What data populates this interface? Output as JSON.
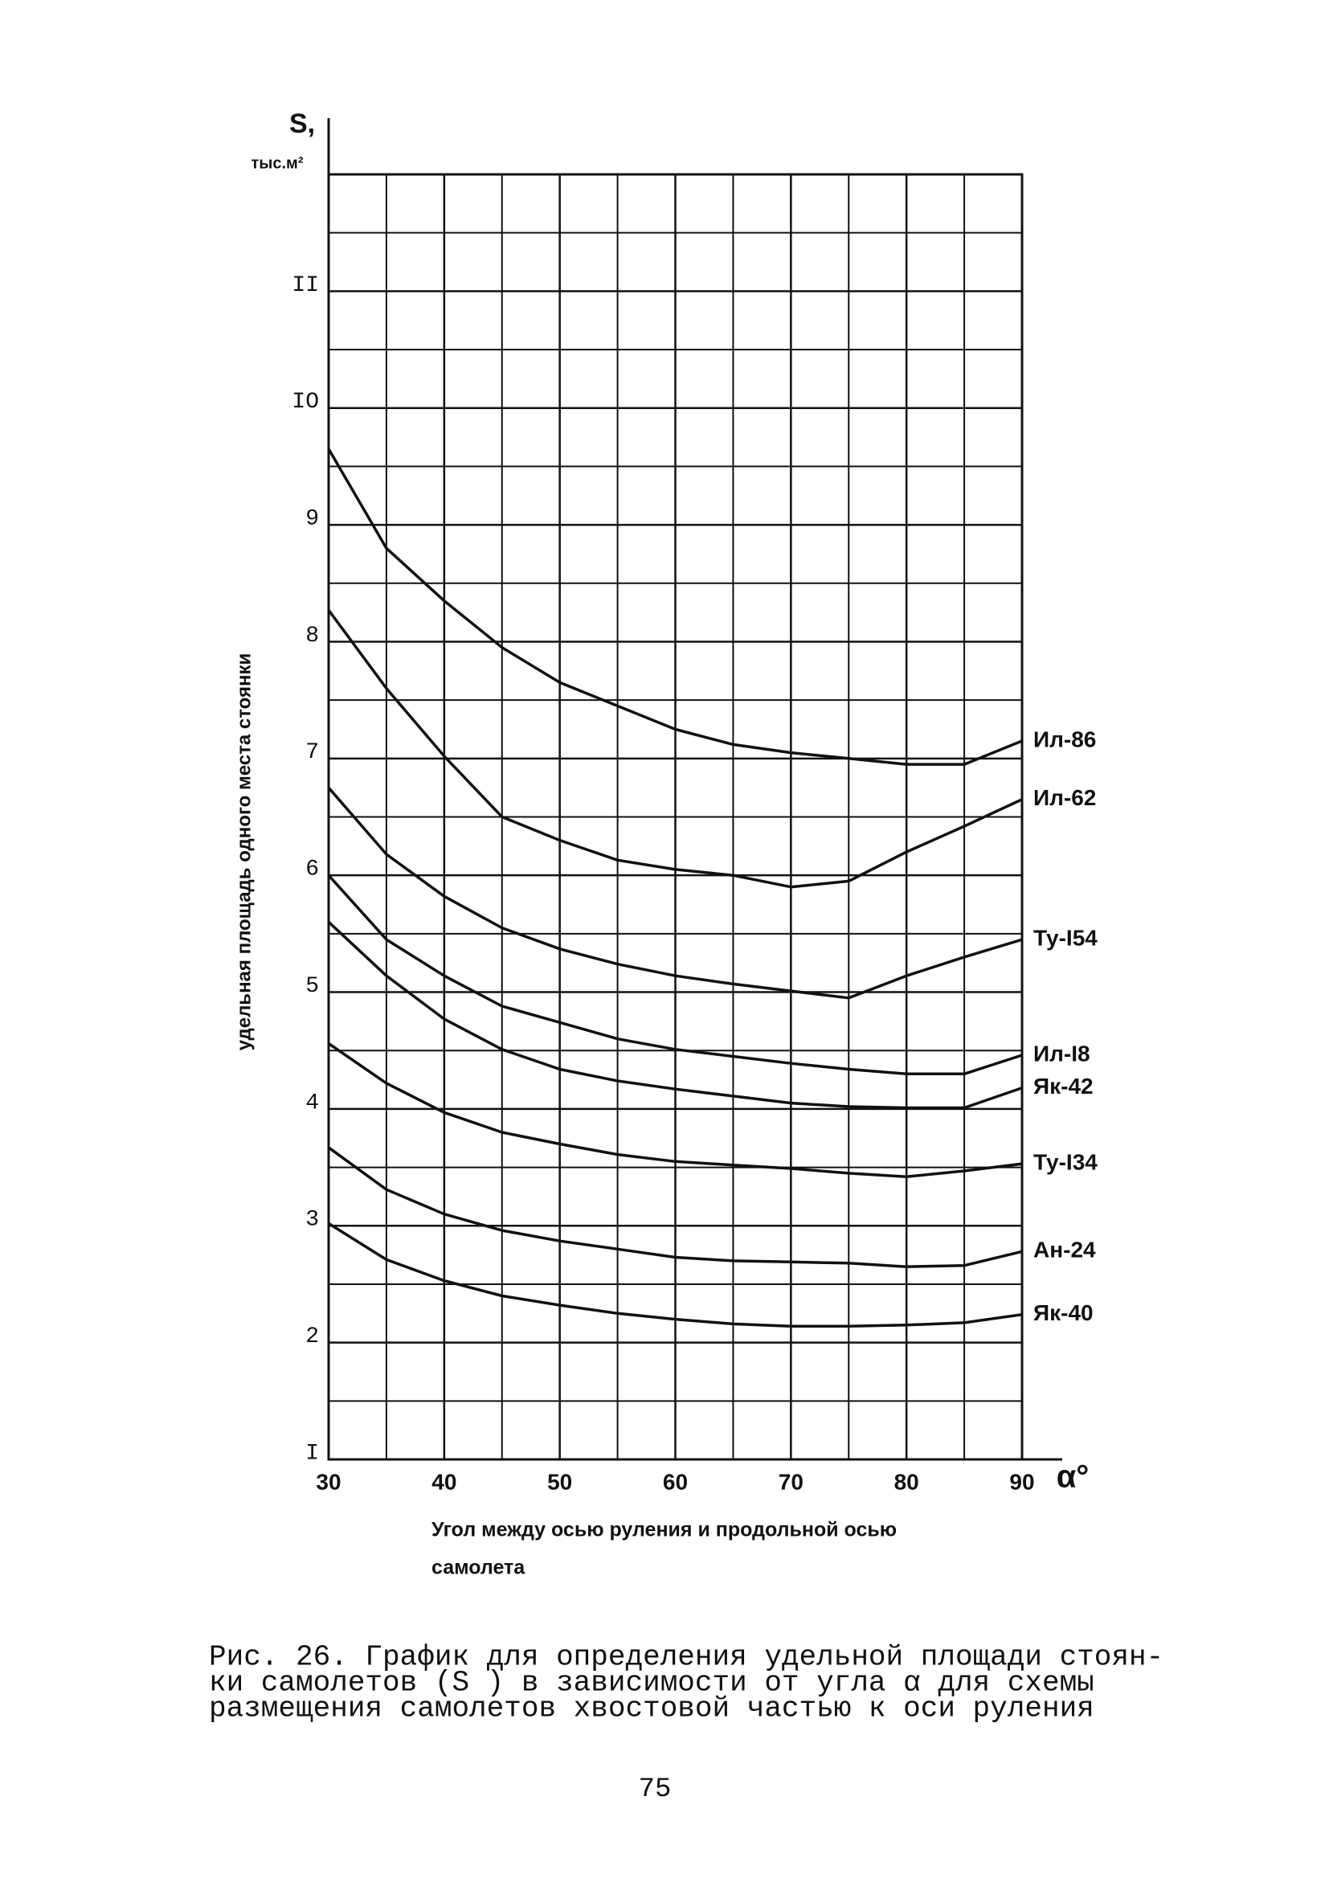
{
  "chart_data": {
    "type": "line",
    "y_label_symbol": "S,",
    "y_label_unit": "тыс.м²",
    "y_label": "удельная площадь одного места стоянки",
    "x_label_symbol": "α°",
    "x_label_lines": [
      "Угол между осью руления и продольной осью",
      "самолета"
    ],
    "x": [
      30,
      35,
      40,
      45,
      50,
      55,
      60,
      65,
      70,
      75,
      80,
      85,
      90
    ],
    "xlim": [
      30,
      90
    ],
    "xticks": [
      30,
      40,
      50,
      60,
      70,
      80,
      90
    ],
    "x_minor_ticks": [
      35,
      45,
      55,
      65,
      75,
      85
    ],
    "ylim": [
      1,
      12
    ],
    "yticks": [
      {
        "value": 1,
        "label": "I"
      },
      2,
      3,
      4,
      5,
      6,
      7,
      8,
      9,
      {
        "value": 10,
        "label": "IO"
      },
      {
        "value": 11,
        "label": "II"
      }
    ],
    "y_minor_ticks": [
      1.5,
      2.5,
      3.5,
      4.5,
      5.5,
      6.5,
      7.5,
      8.5,
      9.5,
      10.5,
      11.5
    ],
    "grid": true,
    "color": "#111111",
    "series": [
      {
        "name": "Ил-86",
        "values": [
          9.65,
          8.8,
          8.35,
          7.95,
          7.65,
          7.45,
          7.25,
          7.12,
          7.05,
          7.0,
          6.95,
          6.95,
          7.15
        ]
      },
      {
        "name": "Ил-62",
        "values": [
          8.27,
          7.6,
          7.02,
          6.5,
          6.3,
          6.13,
          6.05,
          6.0,
          5.9,
          5.95,
          6.2,
          6.42,
          6.65
        ]
      },
      {
        "name": "Ту-I54",
        "values": [
          6.75,
          6.18,
          5.82,
          5.55,
          5.37,
          5.24,
          5.14,
          5.07,
          5.01,
          4.95,
          5.14,
          5.3,
          5.45
        ]
      },
      {
        "name": "Ил-I8",
        "values": [
          6.0,
          5.45,
          5.14,
          4.88,
          4.74,
          4.6,
          4.51,
          4.45,
          4.39,
          4.34,
          4.3,
          4.3,
          4.46
        ]
      },
      {
        "name": "Як-42",
        "values": [
          5.6,
          5.14,
          4.77,
          4.51,
          4.34,
          4.24,
          4.17,
          4.11,
          4.05,
          4.02,
          4.01,
          4.01,
          4.18
        ]
      },
      {
        "name": "Ту-I34",
        "values": [
          4.56,
          4.22,
          3.97,
          3.8,
          3.7,
          3.61,
          3.55,
          3.52,
          3.49,
          3.45,
          3.42,
          3.47,
          3.53
        ]
      },
      {
        "name": "Ан-24",
        "values": [
          3.67,
          3.31,
          3.1,
          2.96,
          2.87,
          2.8,
          2.73,
          2.7,
          2.69,
          2.68,
          2.65,
          2.66,
          2.78
        ]
      },
      {
        "name": "Як-40",
        "values": [
          3.02,
          2.71,
          2.53,
          2.4,
          2.32,
          2.25,
          2.2,
          2.16,
          2.14,
          2.14,
          2.15,
          2.17,
          2.24
        ]
      }
    ]
  },
  "caption_lines": [
    "Рис. 26. График для определения удельной площади стоян-",
    "ки самолетов (S ) в зависимости от угла α для схемы",
    "размещения самолетов хвостовой частью к оси руления"
  ],
  "page_number": "75"
}
